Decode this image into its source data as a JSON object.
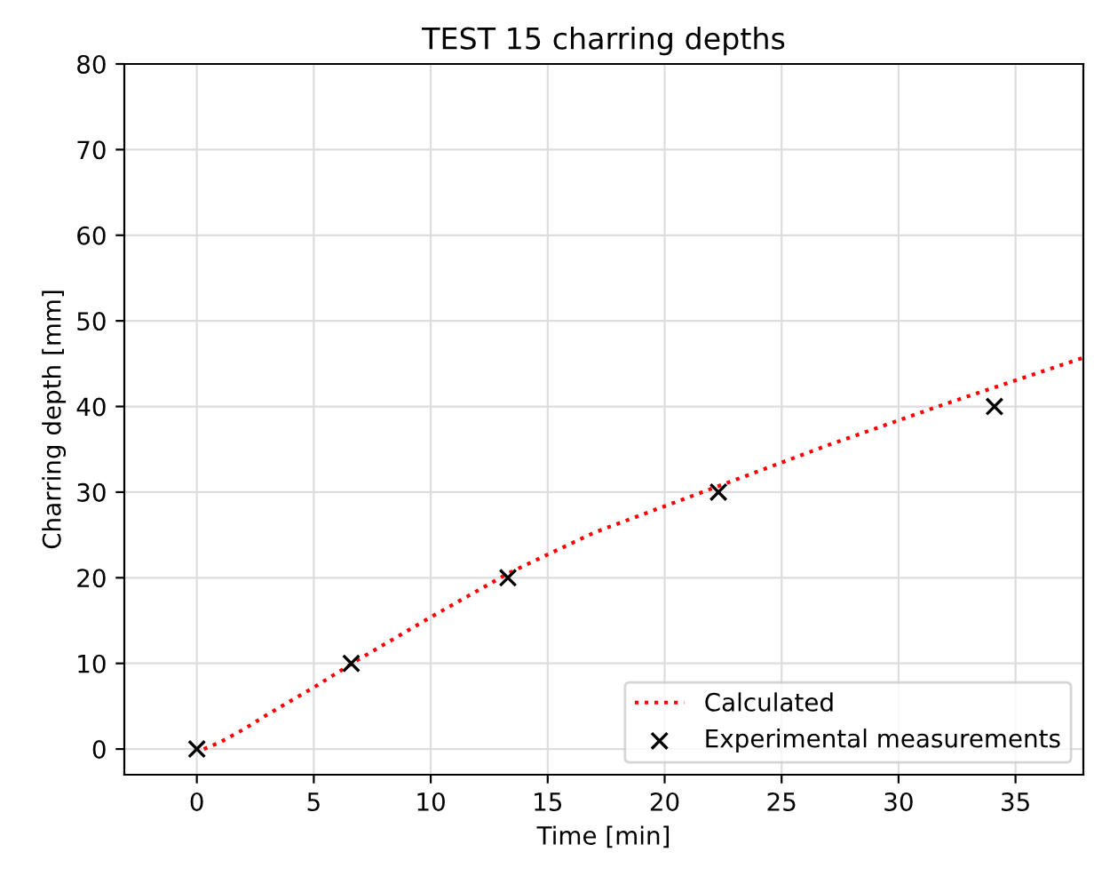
{
  "chart_data": {
    "type": "scatter",
    "title": "TEST 15 charring depths",
    "xlabel": "Time [min]",
    "ylabel": "Charring depth [mm]",
    "series": [
      {
        "name": "Calculated",
        "type": "line",
        "color": "#ff0000",
        "line_style": "dotted",
        "marker": "none",
        "x": [
          0.3,
          1,
          2,
          3,
          4,
          5,
          7,
          10,
          13.3,
          17,
          22.3,
          27,
          32,
          37.9
        ],
        "values": [
          0,
          0.8,
          2.3,
          4,
          5.6,
          7.2,
          10.6,
          15.4,
          20.5,
          25.3,
          30.7,
          35.5,
          40.3,
          45.7
        ]
      },
      {
        "name": "Experimental measurements",
        "color": "#000000",
        "marker": "cross",
        "x": [
          0,
          6.6,
          13.3,
          22.3,
          34.1
        ],
        "values": [
          0,
          10,
          20,
          30,
          40
        ]
      }
    ],
    "xlim": [
      -3.1,
      37.9
    ],
    "ylim": [
      -3,
      80
    ],
    "xticks": [
      0,
      5,
      10,
      15,
      20,
      25,
      30,
      35
    ],
    "yticks": [
      0,
      10,
      20,
      30,
      40,
      50,
      60,
      70,
      80
    ],
    "grid": true,
    "legend": "lower right"
  }
}
